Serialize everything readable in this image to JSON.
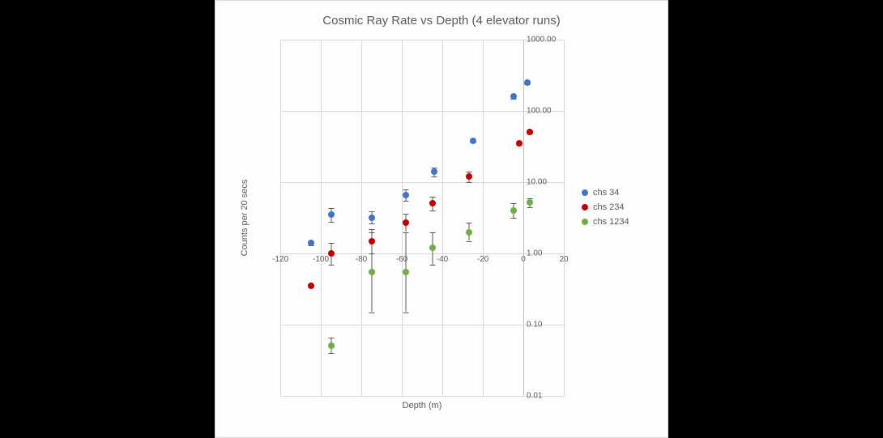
{
  "chart": {
    "type": "scatter",
    "title": "Cosmic Ray Rate vs Depth (4 elevator runs)",
    "title_fontsize": 15,
    "title_color": "#595959",
    "background_color": "#fdfdfd",
    "panel_border_color": "#dcdcdc",
    "grid_color": "#d9d9d9",
    "axis_color": "#bfbfbf",
    "tick_font_color": "#595959",
    "tick_fontsize": 10,
    "axis_label_fontsize": 11,
    "x_axis": {
      "label": "Depth (m)",
      "min": -120,
      "max": 20,
      "ticks": [
        -120,
        -100,
        -80,
        -60,
        -40,
        -20,
        0,
        20
      ],
      "tick_labels": [
        "-120",
        "-100",
        "-80",
        "-60",
        "-40",
        "-20",
        "0",
        "20"
      ],
      "scale": "linear",
      "label_y_at": 1
    },
    "y_axis": {
      "label": "Counts per 20 secs",
      "min": 0.01,
      "max": 1000,
      "ticks": [
        0.01,
        0.1,
        1,
        10,
        100,
        1000
      ],
      "tick_labels": [
        "0.01",
        "0.10",
        "1.00",
        "10.00",
        "100.00",
        "1000.00"
      ],
      "scale": "log"
    },
    "series": [
      {
        "name": "chs 34",
        "legend_label": "chs 34",
        "color": "#4472c4",
        "marker": "circle",
        "marker_size": 8,
        "points": [
          {
            "x": -105,
            "y": 1.4,
            "err_lo": 1.3,
            "err_hi": 1.5
          },
          {
            "x": -95,
            "y": 3.5,
            "err_lo": 2.8,
            "err_hi": 4.3
          },
          {
            "x": -75,
            "y": 3.2,
            "err_lo": 2.6,
            "err_hi": 3.9
          },
          {
            "x": -58,
            "y": 6.5,
            "err_lo": 5.5,
            "err_hi": 8.0
          },
          {
            "x": -44,
            "y": 14,
            "err_lo": 12,
            "err_hi": 16
          },
          {
            "x": -25,
            "y": 38,
            "err_lo": 36,
            "err_hi": 40
          },
          {
            "x": -5,
            "y": 160,
            "err_lo": 150,
            "err_hi": 170
          },
          {
            "x": 2,
            "y": 250,
            "err_lo": 240,
            "err_hi": 260
          }
        ]
      },
      {
        "name": "chs 234",
        "legend_label": "chs 234",
        "color": "#c00000",
        "marker": "circle",
        "marker_size": 8,
        "points": [
          {
            "x": -105,
            "y": 0.35,
            "err_lo": 0.33,
            "err_hi": 0.37
          },
          {
            "x": -95,
            "y": 1.0,
            "err_lo": 0.7,
            "err_hi": 1.4
          },
          {
            "x": -75,
            "y": 1.5,
            "err_lo": 1.0,
            "err_hi": 2.2
          },
          {
            "x": -58,
            "y": 2.7,
            "err_lo": 2.0,
            "err_hi": 3.6
          },
          {
            "x": -45,
            "y": 5.0,
            "err_lo": 4.0,
            "err_hi": 6.2
          },
          {
            "x": -27,
            "y": 12,
            "err_lo": 10,
            "err_hi": 14
          },
          {
            "x": -2,
            "y": 35,
            "err_lo": 33,
            "err_hi": 37
          },
          {
            "x": 3,
            "y": 50,
            "err_lo": 48,
            "err_hi": 52
          }
        ]
      },
      {
        "name": "chs 1234",
        "legend_label": "chs 1234",
        "color": "#70ad47",
        "marker": "circle",
        "marker_size": 8,
        "points": [
          {
            "x": -95,
            "y": 0.05,
            "err_lo": 0.04,
            "err_hi": 0.065
          },
          {
            "x": -75,
            "y": 0.55,
            "err_lo": 0.15,
            "err_hi": 2.0
          },
          {
            "x": -58,
            "y": 0.55,
            "err_lo": 0.15,
            "err_hi": 2.0
          },
          {
            "x": -45,
            "y": 1.2,
            "err_lo": 0.7,
            "err_hi": 2.0
          },
          {
            "x": -27,
            "y": 2.0,
            "err_lo": 1.5,
            "err_hi": 2.7
          },
          {
            "x": -5,
            "y": 4.0,
            "err_lo": 3.2,
            "err_hi": 5.0
          },
          {
            "x": 3,
            "y": 5.2,
            "err_lo": 4.5,
            "err_hi": 6.0
          }
        ]
      }
    ],
    "legend": {
      "position": "right",
      "fontsize": 11
    }
  }
}
